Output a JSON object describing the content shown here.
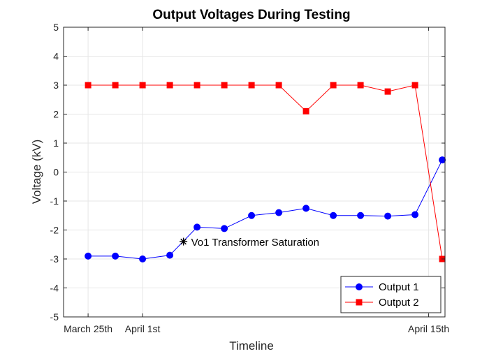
{
  "chart_data": {
    "type": "line",
    "title": "Output Voltages During Testing",
    "xlabel": "Timeline",
    "ylabel": "Voltage (kV)",
    "ylim": [
      -5,
      5
    ],
    "xlim": [
      0.1,
      14.1
    ],
    "yticks": [
      -5,
      -4,
      -3,
      -2,
      -1,
      0,
      1,
      2,
      3,
      4,
      5
    ],
    "xticks": [
      {
        "x": 1,
        "label": "March 25th"
      },
      {
        "x": 3,
        "label": "April 1st"
      },
      {
        "x": 13.5,
        "label": "April 15th"
      }
    ],
    "grid": true,
    "legend_position": "bottom-right",
    "series": [
      {
        "name": "Output 1",
        "color": "#0000ff",
        "marker": "circle",
        "x": [
          1,
          2,
          3,
          4,
          5,
          6,
          7,
          8,
          9,
          10,
          11,
          12,
          13,
          14
        ],
        "values": [
          -2.9,
          -2.9,
          -3.0,
          -2.87,
          -1.9,
          -1.95,
          -1.5,
          -1.4,
          -1.25,
          -1.5,
          -1.5,
          -1.52,
          -1.47,
          0.42
        ]
      },
      {
        "name": "Output 2",
        "color": "#ff0000",
        "marker": "square",
        "x": [
          1,
          2,
          3,
          4,
          5,
          6,
          7,
          8,
          9,
          10,
          11,
          12,
          13,
          14
        ],
        "values": [
          3.0,
          3.0,
          3.0,
          3.0,
          3.0,
          3.0,
          3.0,
          3.0,
          2.1,
          3.0,
          3.0,
          2.78,
          3.0,
          -3.0
        ]
      }
    ],
    "annotations": [
      {
        "x": 4.5,
        "y": -2.4,
        "marker": "asterisk",
        "text": "Vo1 Transformer Saturation"
      }
    ]
  }
}
